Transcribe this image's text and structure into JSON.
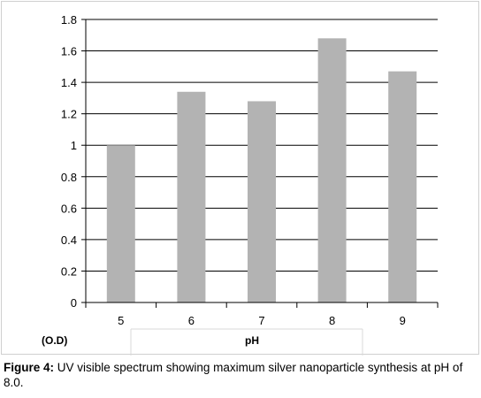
{
  "chart_data": {
    "type": "bar",
    "categories": [
      "5",
      "6",
      "7",
      "8",
      "9"
    ],
    "values": [
      1.0,
      1.34,
      1.28,
      1.68,
      1.47
    ],
    "ylim": [
      0,
      1.8
    ],
    "yticks": [
      "0",
      "0.2",
      "0.4",
      "0.6",
      "0.8",
      "1",
      "1.2",
      "1.4",
      "1.6",
      "1.8"
    ],
    "ylabel": "(O.D)",
    "xlabel": "pH",
    "bar_color": "#b3b3b3",
    "grid": true
  },
  "caption": {
    "label": "Figure 4:",
    "text": " UV visible spectrum showing maximum silver nanoparticle synthesis at pH of 8.0."
  }
}
